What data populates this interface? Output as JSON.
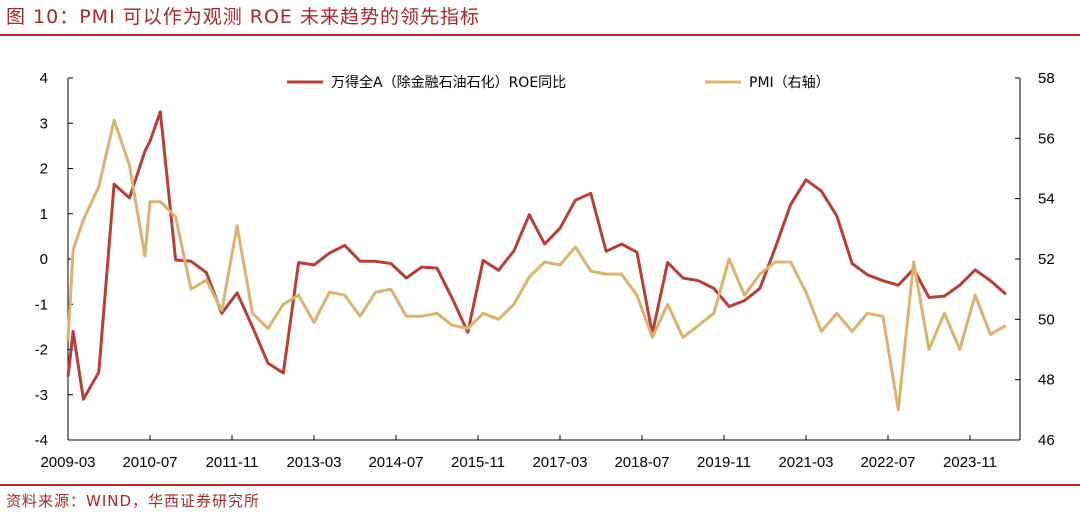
{
  "header": {
    "title": "图 10：PMI 可以作为观测 ROE 未来趋势的领先指标"
  },
  "footer": {
    "source": "资料来源：WIND，华西证券研究所"
  },
  "colors": {
    "roe": "#b5403b",
    "pmi": "#d9b470",
    "accent": "#b22b2b"
  },
  "chart_data": {
    "type": "line",
    "title": "",
    "xlabel": "",
    "ylabel": "",
    "x_ticks": [
      "2009-03",
      "2010-07",
      "2011-11",
      "2013-03",
      "2014-07",
      "2015-11",
      "2017-03",
      "2018-07",
      "2019-11",
      "2021-03",
      "2022-07",
      "2023-11"
    ],
    "y_left_ticks": [
      "4",
      "3",
      "2",
      "1",
      "0",
      "-1",
      "-2",
      "-3",
      "-4"
    ],
    "y_right_ticks": [
      "58",
      "56",
      "54",
      "52",
      "50",
      "48",
      "46"
    ],
    "ylim_left": [
      -4,
      4
    ],
    "ylim_right": [
      46,
      58
    ],
    "grid": false,
    "legend_position": "top",
    "series": [
      {
        "name": "万得全A（除金融石油石化）ROE同比",
        "axis": "left",
        "x": [
          "2009-03",
          "2009-04",
          "2009-06",
          "2009-09",
          "2009-12",
          "2010-03",
          "2010-06",
          "2010-07",
          "2010-09",
          "2010-12",
          "2011-03",
          "2011-06",
          "2011-09",
          "2011-12",
          "2012-03",
          "2012-06",
          "2012-09",
          "2012-12",
          "2013-03",
          "2013-06",
          "2013-09",
          "2013-12",
          "2014-03",
          "2014-06",
          "2014-09",
          "2014-12",
          "2015-03",
          "2015-06",
          "2015-09",
          "2015-12",
          "2016-03",
          "2016-06",
          "2016-09",
          "2016-12",
          "2017-03",
          "2017-06",
          "2017-09",
          "2017-12",
          "2018-03",
          "2018-06",
          "2018-09",
          "2018-12",
          "2019-03",
          "2019-06",
          "2019-09",
          "2019-12",
          "2020-03",
          "2020-06",
          "2020-09",
          "2020-12",
          "2021-03",
          "2021-06",
          "2021-09",
          "2021-12",
          "2022-03",
          "2022-06",
          "2022-09",
          "2022-12",
          "2023-03",
          "2023-06",
          "2023-09",
          "2023-12",
          "2024-03",
          "2024-06"
        ],
        "values": [
          -2.6,
          -1.6,
          -3.1,
          -2.5,
          1.65,
          1.35,
          2.38,
          2.6,
          3.25,
          -0.02,
          -0.05,
          -0.3,
          -1.2,
          -0.75,
          -1.5,
          -2.3,
          -2.52,
          -0.08,
          -0.13,
          0.13,
          0.3,
          -0.05,
          -0.05,
          -0.1,
          -0.42,
          -0.18,
          -0.2,
          -0.88,
          -1.62,
          -0.03,
          -0.25,
          0.18,
          0.98,
          0.33,
          0.68,
          1.3,
          1.45,
          0.17,
          0.33,
          0.15,
          -1.65,
          -0.08,
          -0.42,
          -0.48,
          -0.65,
          -1.05,
          -0.92,
          -0.65,
          0.25,
          1.2,
          1.75,
          1.5,
          0.95,
          -0.1,
          -0.35,
          -0.48,
          -0.58,
          -0.22,
          -0.85,
          -0.82,
          -0.58,
          -0.24,
          -0.48,
          -0.78
        ]
      },
      {
        "name": "PMI（右轴）",
        "axis": "right",
        "x": [
          "2009-03",
          "2009-04",
          "2009-06",
          "2009-09",
          "2009-12",
          "2010-03",
          "2010-06",
          "2010-07",
          "2010-09",
          "2010-12",
          "2011-03",
          "2011-06",
          "2011-09",
          "2011-12",
          "2012-03",
          "2012-06",
          "2012-09",
          "2012-12",
          "2013-03",
          "2013-06",
          "2013-09",
          "2013-12",
          "2014-03",
          "2014-06",
          "2014-09",
          "2014-12",
          "2015-03",
          "2015-06",
          "2015-09",
          "2015-12",
          "2016-03",
          "2016-06",
          "2016-09",
          "2016-12",
          "2017-03",
          "2017-06",
          "2017-09",
          "2017-12",
          "2018-03",
          "2018-06",
          "2018-09",
          "2018-12",
          "2019-03",
          "2019-06",
          "2019-09",
          "2019-12",
          "2020-03",
          "2020-06",
          "2020-09",
          "2020-12",
          "2021-03",
          "2021-06",
          "2021-09",
          "2021-12",
          "2022-03",
          "2022-06",
          "2022-09",
          "2022-12",
          "2023-03",
          "2023-06",
          "2023-09",
          "2023-12",
          "2024-03",
          "2024-06"
        ],
        "values": [
          49.3,
          52.3,
          53.3,
          54.4,
          56.6,
          55.1,
          52.1,
          53.9,
          53.9,
          53.4,
          51.0,
          51.3,
          50.3,
          53.1,
          50.2,
          49.7,
          50.5,
          50.8,
          49.9,
          50.9,
          50.8,
          50.1,
          50.9,
          51.0,
          50.1,
          50.1,
          50.2,
          49.8,
          49.7,
          50.2,
          50.0,
          50.5,
          51.4,
          51.9,
          51.8,
          52.4,
          51.6,
          51.5,
          51.5,
          50.8,
          49.4,
          50.5,
          49.4,
          49.8,
          50.2,
          52.0,
          50.8,
          51.5,
          51.9,
          51.9,
          50.9,
          49.6,
          50.2,
          49.6,
          50.2,
          50.1,
          47.0,
          51.9,
          49.0,
          50.2,
          49.0,
          50.8,
          49.5,
          49.8
        ]
      }
    ]
  }
}
